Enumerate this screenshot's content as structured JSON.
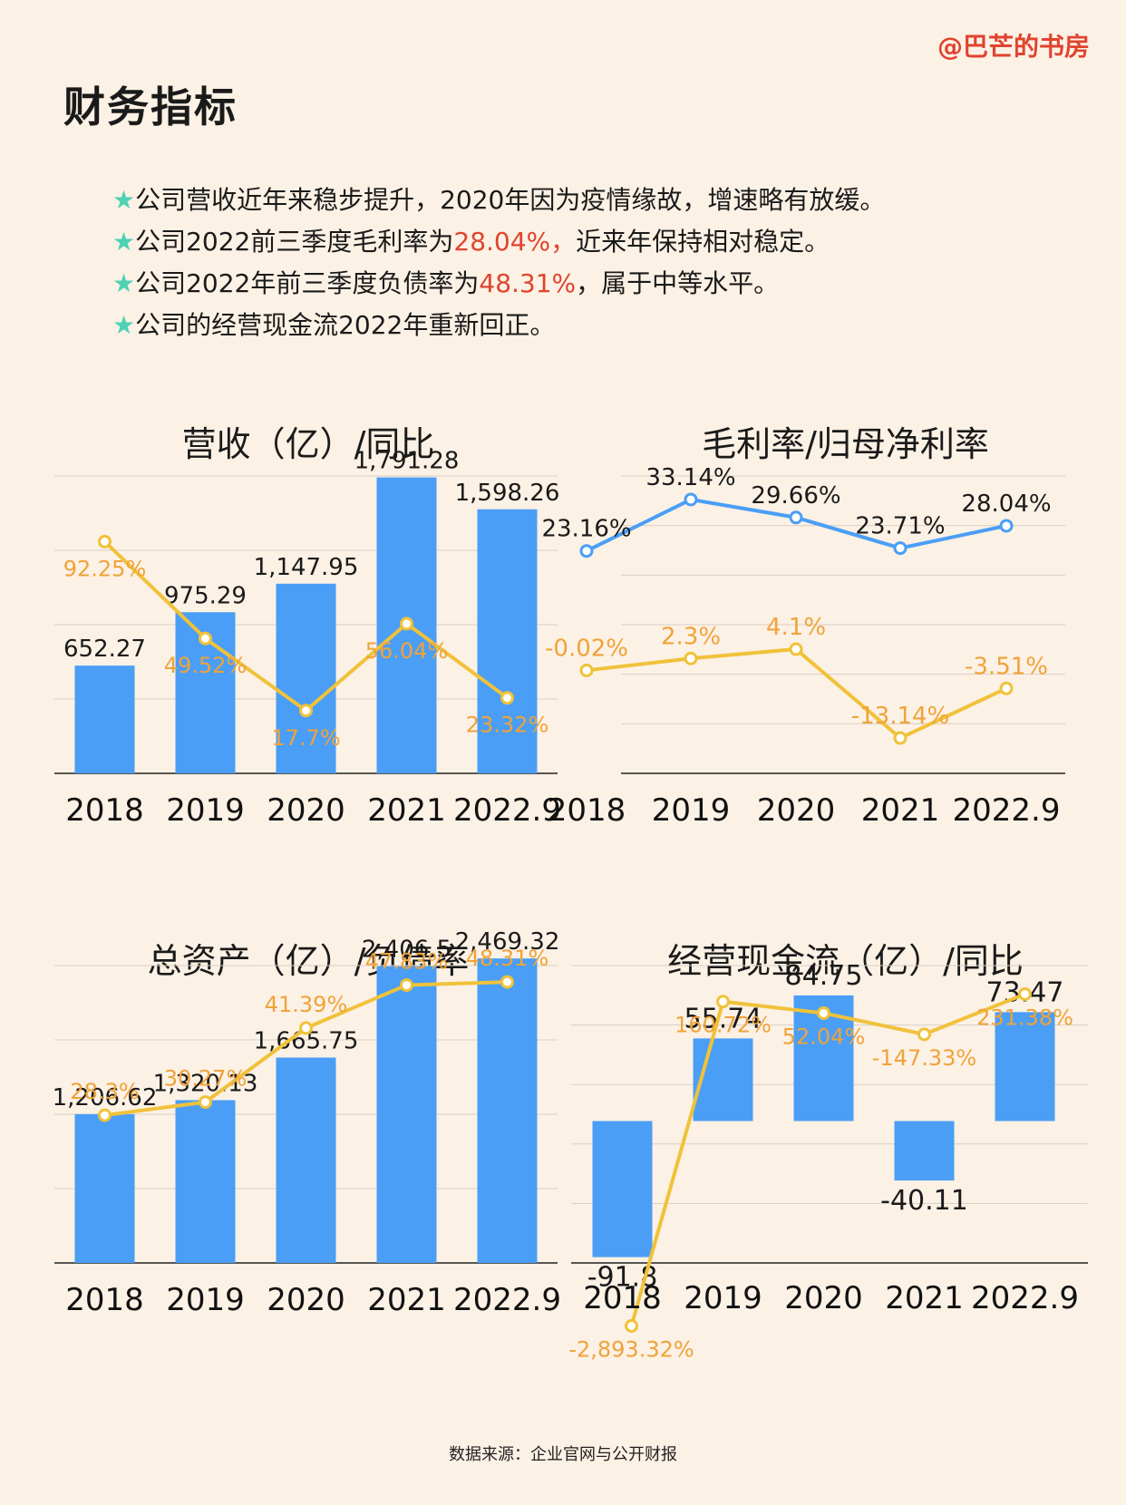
{
  "brand": "@巴芒的书房",
  "title": "财务指标",
  "bullets": [
    {
      "star": "★",
      "pre": "公司营收近年来稳步提升，2020年因为疫情缘故，增速略有放缓。",
      "hl": "",
      "post": ""
    },
    {
      "star": "★",
      "pre": "公司2022前三季度毛利率为",
      "hl": "28.04%，",
      "post": "近来年保持相对稳定。"
    },
    {
      "star": "★",
      "pre": "公司2022年前三季度负债率为",
      "hl": "48.31%",
      "post": "，属于中等水平。"
    },
    {
      "star": "★",
      "pre": "公司的经营现金流2022年重新回正。",
      "hl": "",
      "post": ""
    }
  ],
  "footer": "数据来源：企业官网与公开财报",
  "colors": {
    "bar": "#4a9ef5",
    "line_yellow": "#f0c23a",
    "label_orange": "#f0a33a",
    "line_blue": "#4a9ef5"
  },
  "chart_data": [
    {
      "id": "revenue",
      "type": "bar+line",
      "title": "营收（亿）/同比",
      "categories": [
        "2018",
        "2019",
        "2020",
        "2021",
        "2022.9"
      ],
      "bars": [
        652.27,
        975.29,
        1147.95,
        1791.28,
        1598.26
      ],
      "bar_labels": [
        "652.27",
        "975.29",
        "1,147.95",
        "1,791.28",
        "1,598.26"
      ],
      "line": [
        92.25,
        49.52,
        17.7,
        56.04,
        23.32
      ],
      "line_labels": [
        "92.25%",
        "49.52%",
        "17.7%",
        "56.04%",
        "23.32%"
      ],
      "bar_range": [
        0,
        1800
      ],
      "line_range": [
        0,
        110
      ]
    },
    {
      "id": "margin",
      "type": "line",
      "title": "毛利率/归母净利率",
      "categories": [
        "2018",
        "2019",
        "2020",
        "2021",
        "2022.9"
      ],
      "series": [
        {
          "name": "毛利率",
          "values": [
            23.16,
            33.14,
            29.66,
            23.71,
            28.04
          ],
          "labels": [
            "23.16%",
            "33.14%",
            "29.66%",
            "23.71%",
            "28.04%"
          ]
        },
        {
          "name": "归母净利率",
          "values": [
            -0.02,
            2.3,
            4.1,
            -13.14,
            -3.51
          ],
          "labels": [
            "-0.02%",
            "2.3%",
            "4.1%",
            "-13.14%",
            "-3.51%"
          ]
        }
      ],
      "y_range": [
        -20,
        40
      ]
    },
    {
      "id": "assets",
      "type": "bar+line",
      "title": "总资产（亿）/负债率",
      "categories": [
        "2018",
        "2019",
        "2020",
        "2021",
        "2022.9"
      ],
      "bars": [
        1206.62,
        1320.13,
        1665.75,
        2406.5,
        2469.32
      ],
      "bar_labels": [
        "1,206.62",
        "1,320.13",
        "1,665.75",
        "2,406.5",
        "2,469.32"
      ],
      "line": [
        28.3,
        30.27,
        41.39,
        47.83,
        48.31
      ],
      "line_labels": [
        "28.3%",
        "30.27%",
        "41.39%",
        "47.83%",
        "48.31%"
      ],
      "bar_range": [
        0,
        2500
      ],
      "line_range": [
        0,
        49
      ]
    },
    {
      "id": "cashflow",
      "type": "bar+line",
      "title": "经营现金流（亿）/同比",
      "categories": [
        "2018",
        "2019",
        "2020",
        "2021",
        "2022.9"
      ],
      "bars": [
        -91.8,
        55.74,
        84.75,
        -40.11,
        73.47
      ],
      "bar_labels": [
        "-91.8",
        "55.74",
        "84.75",
        "-40.11",
        "73.47"
      ],
      "line": [
        -2893.32,
        160.72,
        52.04,
        -147.33,
        231.38
      ],
      "line_labels": [
        "-2,893.32%",
        "160.72%",
        "52.04%",
        "-147.33%",
        "231.38%"
      ],
      "bar_range": [
        -100,
        100
      ],
      "line_range": [
        -3000,
        500
      ]
    }
  ]
}
